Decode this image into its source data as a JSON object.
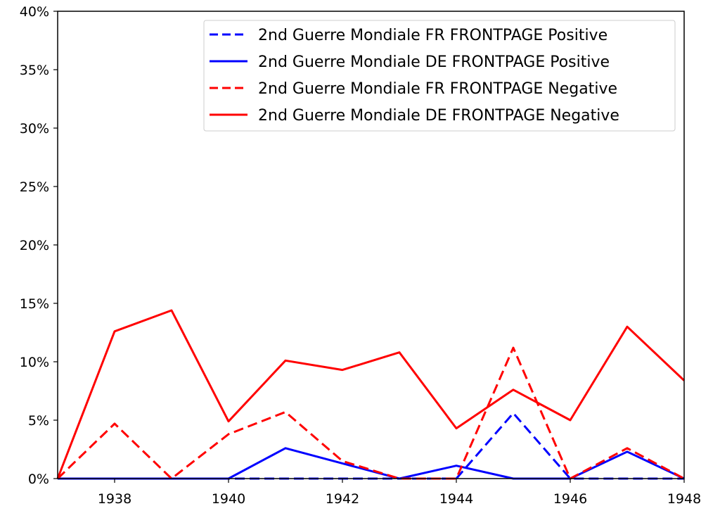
{
  "chart_data": {
    "type": "line",
    "title": "",
    "xlabel": "",
    "ylabel": "",
    "xlim": [
      1937,
      1948
    ],
    "ylim": [
      0,
      0.4
    ],
    "x_ticks": [
      1938,
      1940,
      1942,
      1944,
      1946,
      1948
    ],
    "x_tick_labels": [
      "1938",
      "1940",
      "1942",
      "1944",
      "1946",
      "1948"
    ],
    "y_ticks": [
      0,
      0.05,
      0.1,
      0.15,
      0.2,
      0.25,
      0.3,
      0.35,
      0.4
    ],
    "y_tick_labels": [
      "0%",
      "5%",
      "10%",
      "15%",
      "20%",
      "25%",
      "30%",
      "35%",
      "40%"
    ],
    "grid": false,
    "legend_position": "top-right",
    "x": [
      1937,
      1938,
      1939,
      1940,
      1941,
      1942,
      1943,
      1944,
      1945,
      1946,
      1947,
      1948
    ],
    "series": [
      {
        "name": "2nd Guerre Mondiale FR FRONTPAGE Positive",
        "color": "#0000ff",
        "style": "dashed",
        "values": [
          0,
          0,
          0,
          0,
          0,
          0,
          0,
          0,
          0.056,
          0,
          0,
          0
        ]
      },
      {
        "name": "2nd Guerre Mondiale DE FRONTPAGE Positive",
        "color": "#0000ff",
        "style": "solid",
        "values": [
          0,
          0,
          0,
          0,
          0.026,
          0.013,
          0,
          0.011,
          0,
          0,
          0.023,
          0
        ]
      },
      {
        "name": "2nd Guerre Mondiale FR FRONTPAGE Negative",
        "color": "#ff0000",
        "style": "dashed",
        "values": [
          0,
          0.047,
          0,
          0.038,
          0.057,
          0.015,
          0,
          0,
          0.112,
          0,
          0.026,
          0
        ]
      },
      {
        "name": "2nd Guerre Mondiale DE FRONTPAGE Negative",
        "color": "#ff0000",
        "style": "solid",
        "values": [
          0,
          0.126,
          0.144,
          0.049,
          0.101,
          0.093,
          0.108,
          0.043,
          0.076,
          0.05,
          0.13,
          0.084
        ]
      }
    ]
  }
}
